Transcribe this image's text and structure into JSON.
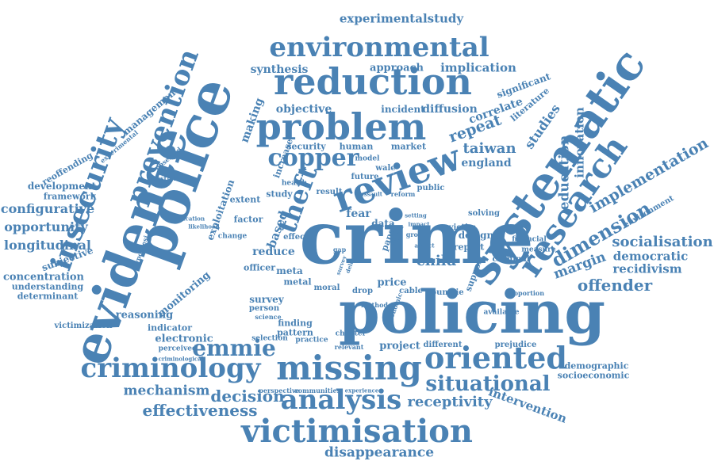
{
  "colors": {
    "word": "#4a82b4",
    "background": "#ffffff"
  },
  "words": [
    "crime",
    "policing",
    "police",
    "evidence",
    "systematic",
    "review",
    "problem",
    "reduction",
    "environmental",
    "research",
    "missing",
    "criminology",
    "victimisation",
    "oriented",
    "analysis",
    "insecurity",
    "prevention",
    "situational",
    "copper",
    "theft",
    "emmie",
    "experimentalstudy",
    "effectiveness",
    "disappearance",
    "decision",
    "mechanism",
    "receptivity",
    "intervention",
    "dimension",
    "implementation",
    "offender",
    "socialisation",
    "democratic",
    "recidivism",
    "margin",
    "education",
    "innovation",
    "taiwan",
    "england",
    "studies",
    "configurative",
    "opportunity",
    "longitudinal",
    "concentration",
    "development",
    "framework",
    "subjective",
    "understanding",
    "determinant",
    "victimization",
    "reoffending",
    "management",
    "synthesis",
    "approach",
    "implication",
    "objective",
    "incident",
    "diffusion",
    "correlate",
    "significant",
    "literature",
    "making",
    "security",
    "human",
    "market",
    "exploitation",
    "monitoring",
    "reasoning",
    "indicator",
    "electronic",
    "perceived",
    "criminological",
    "reduce",
    "child",
    "price",
    "survey",
    "person",
    "meta",
    "metal",
    "moral",
    "finding",
    "pattern",
    "drop",
    "cable",
    "countrie",
    "report",
    "design",
    "support",
    "project",
    "different",
    "prejudice",
    "demographic",
    "socioeconomic",
    "fear",
    "data",
    "based",
    "victim",
    "criminal",
    "measure",
    "financial",
    "available",
    "chapter",
    "relevant",
    "study",
    "result",
    "public",
    "effect",
    "officer",
    "repeat",
    "extent",
    "factor",
    "change",
    "practice",
    "selection",
    "perspective",
    "communities",
    "experience",
    "environment",
    "proportion",
    "solving",
    "increase",
    "future",
    "question",
    "hypothesi",
    "experimental",
    "observed",
    "health",
    "model",
    "wale",
    "group",
    "target",
    "paper",
    "method",
    "economic",
    "science",
    "gap",
    "delivery",
    "survey",
    "application",
    "likelihood",
    "reform",
    "assault",
    "setting",
    "aspect",
    "impact"
  ]
}
